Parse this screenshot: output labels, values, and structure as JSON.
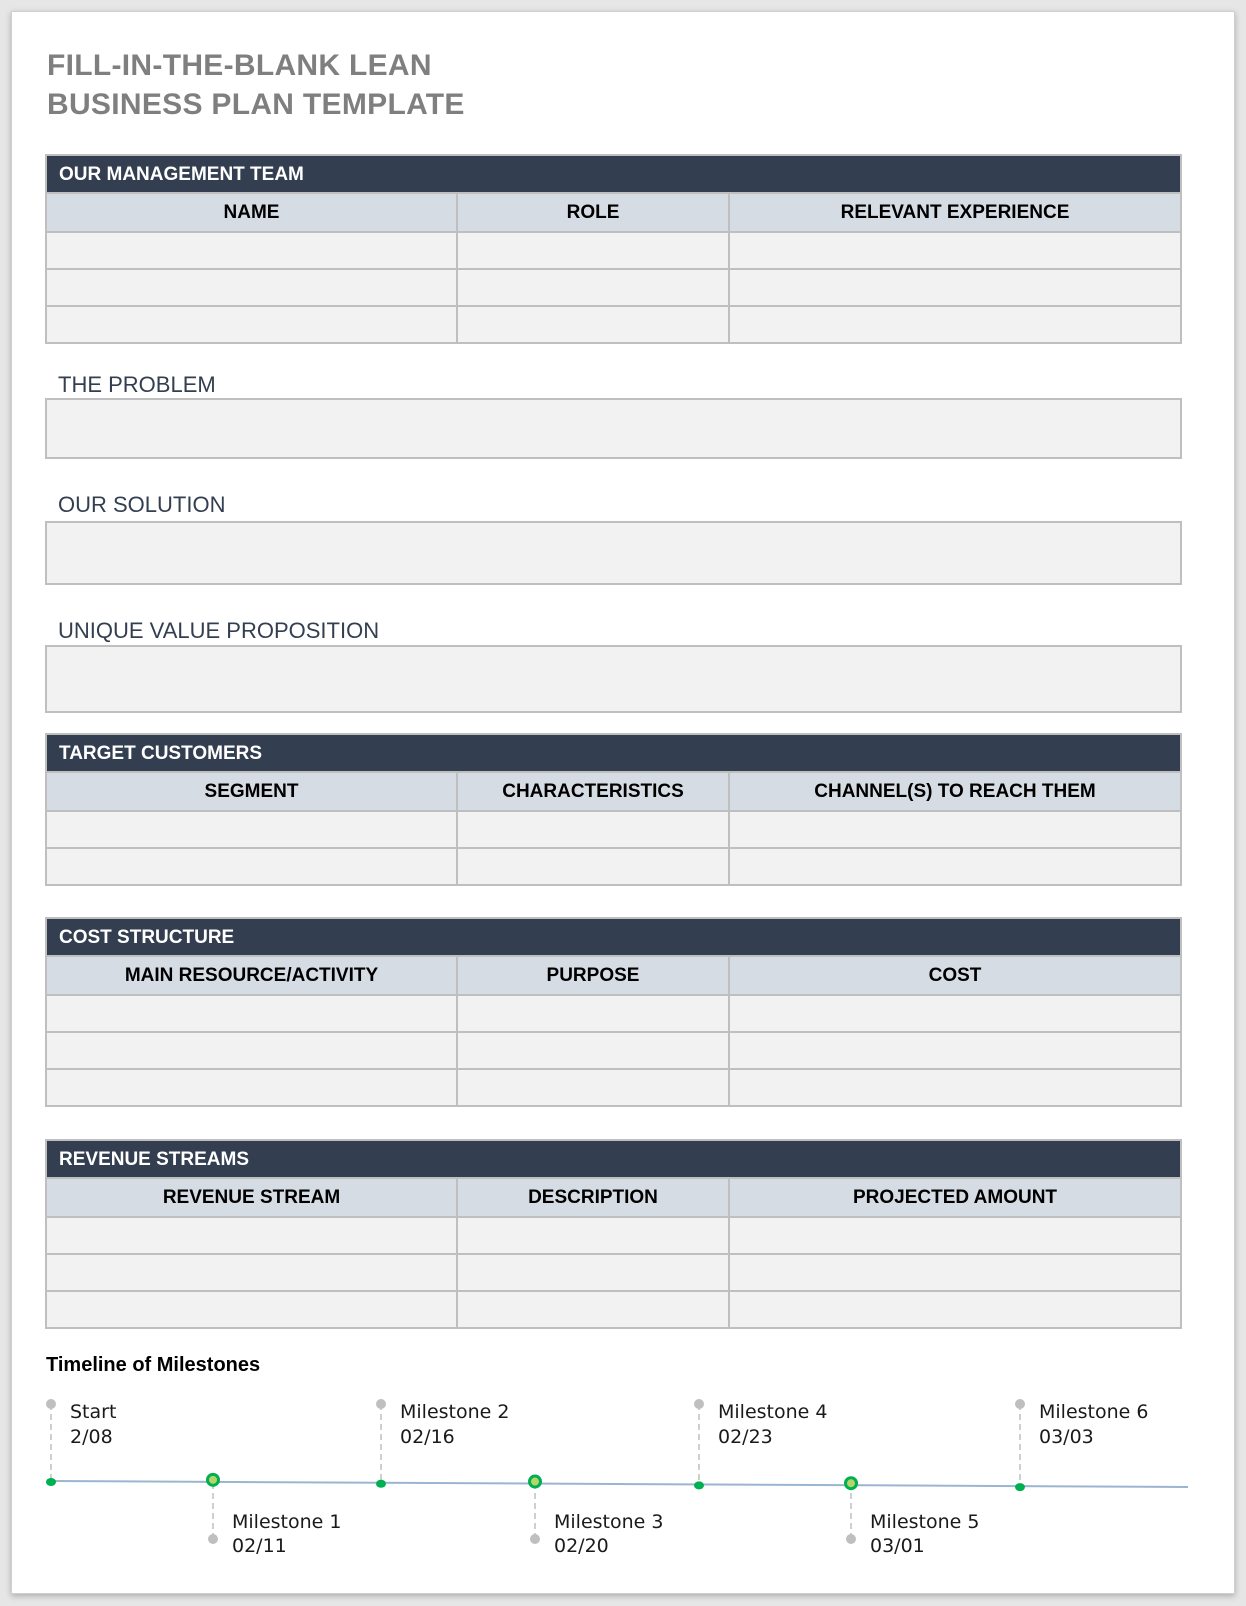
{
  "title_line1": "FILL-IN-THE-BLANK LEAN",
  "title_line2": "BUSINESS PLAN TEMPLATE",
  "management": {
    "title": "OUR MANAGEMENT TEAM",
    "columns": [
      "NAME",
      "ROLE",
      "RELEVANT EXPERIENCE"
    ],
    "rows": 3
  },
  "problem": {
    "label": "THE PROBLEM"
  },
  "solution": {
    "label": "OUR SOLUTION"
  },
  "uvp": {
    "label": "UNIQUE VALUE PROPOSITION"
  },
  "customers": {
    "title": "TARGET CUSTOMERS",
    "columns": [
      "SEGMENT",
      "CHARACTERISTICS",
      "CHANNEL(S) TO REACH THEM"
    ],
    "rows": 2
  },
  "costs": {
    "title": "COST STRUCTURE",
    "columns": [
      "MAIN RESOURCE/ACTIVITY",
      "PURPOSE",
      "COST"
    ],
    "rows": 3
  },
  "revenue": {
    "title": "REVENUE STREAMS",
    "columns": [
      "REVENUE STREAM",
      "DESCRIPTION",
      "PROJECTED AMOUNT"
    ],
    "rows": 3
  },
  "timeline": {
    "title": "Timeline of Milestones",
    "line_color": "#9bb5d0",
    "point_color": "#00b050",
    "milestones": [
      {
        "label": "Start",
        "date": "2/08",
        "position": "above"
      },
      {
        "label": "Milestone 1",
        "date": "02/11",
        "position": "below"
      },
      {
        "label": "Milestone 2",
        "date": "02/16",
        "position": "above"
      },
      {
        "label": "Milestone 3",
        "date": "02/20",
        "position": "below"
      },
      {
        "label": "Milestone 4",
        "date": "02/23",
        "position": "above"
      },
      {
        "label": "Milestone 5",
        "date": "03/01",
        "position": "below"
      },
      {
        "label": "Milestone 6",
        "date": "03/03",
        "position": "above"
      }
    ]
  }
}
